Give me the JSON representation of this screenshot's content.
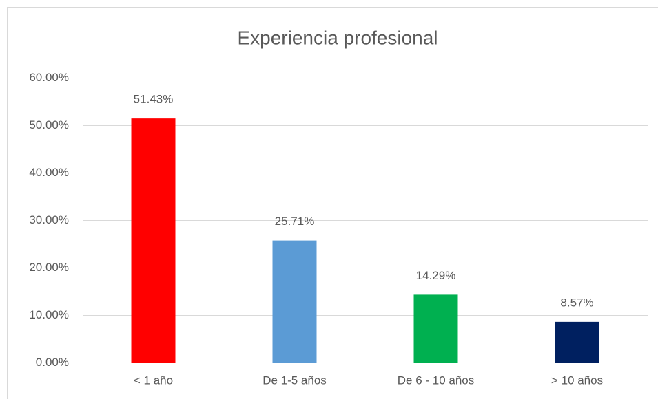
{
  "chart_data": {
    "type": "bar",
    "title": "Experiencia profesional",
    "categories": [
      "< 1 año",
      "De 1-5 años",
      "De 6 - 10 años",
      "> 10 años"
    ],
    "values": [
      51.43,
      25.71,
      14.29,
      8.57
    ],
    "value_labels": [
      "51.43%",
      "25.71%",
      "14.29%",
      "8.57%"
    ],
    "colors": [
      "#ff0000",
      "#5b9bd5",
      "#00b050",
      "#002060"
    ],
    "ylim": [
      0,
      60
    ],
    "yticks": [
      {
        "value": 0,
        "label": "0.00%"
      },
      {
        "value": 10,
        "label": "10.00%"
      },
      {
        "value": 20,
        "label": "20.00%"
      },
      {
        "value": 30,
        "label": "30.00%"
      },
      {
        "value": 40,
        "label": "40.00%"
      },
      {
        "value": 50,
        "label": "50.00%"
      },
      {
        "value": 60,
        "label": "60.00%"
      }
    ],
    "grid": true
  }
}
